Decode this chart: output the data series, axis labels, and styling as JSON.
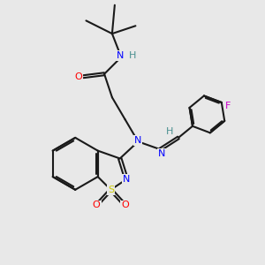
{
  "background_color": "#e8e8e8",
  "atom_colors": {
    "C": "#1a1a1a",
    "N": "#0000ff",
    "O": "#ff0000",
    "S": "#cccc00",
    "F": "#cc00cc",
    "H": "#4a9090"
  },
  "bond_color": "#1a1a1a",
  "bond_width": 1.5,
  "fig_width": 3.0,
  "fig_height": 3.0,
  "dpi": 100
}
